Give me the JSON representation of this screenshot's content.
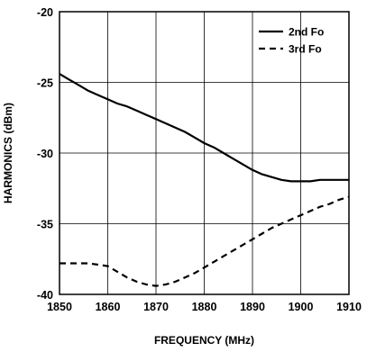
{
  "chart_data": {
    "type": "line",
    "xlabel": "FREQUENCY (MHz)",
    "ylabel": "HARMONICS (dBm)",
    "xlim": [
      1850,
      1910
    ],
    "ylim": [
      -40,
      -20
    ],
    "x_ticks": [
      "1850",
      "1860",
      "1870",
      "1880",
      "1890",
      "1900",
      "1910"
    ],
    "y_ticks": [
      "-20",
      "-25",
      "-30",
      "-35",
      "-40"
    ],
    "x_tick_values": [
      1850,
      1860,
      1870,
      1880,
      1890,
      1900,
      1910
    ],
    "y_tick_values": [
      -20,
      -25,
      -30,
      -35,
      -40
    ],
    "grid": true,
    "legend_position": "top-right",
    "series": [
      {
        "name": "2nd Fo",
        "style": "solid",
        "color": "#000000",
        "x": [
          1850,
          1852,
          1854,
          1856,
          1858,
          1860,
          1862,
          1864,
          1866,
          1868,
          1870,
          1872,
          1874,
          1876,
          1878,
          1880,
          1882,
          1884,
          1886,
          1888,
          1890,
          1892,
          1894,
          1896,
          1898,
          1900,
          1902,
          1904,
          1906,
          1908,
          1910
        ],
        "y": [
          -24.4,
          -24.8,
          -25.2,
          -25.6,
          -25.9,
          -26.2,
          -26.5,
          -26.7,
          -27.0,
          -27.3,
          -27.6,
          -27.9,
          -28.2,
          -28.5,
          -28.9,
          -29.3,
          -29.6,
          -30.0,
          -30.4,
          -30.8,
          -31.2,
          -31.5,
          -31.7,
          -31.9,
          -32.0,
          -32.0,
          -32.0,
          -31.9,
          -31.9,
          -31.9,
          -31.9
        ]
      },
      {
        "name": "3rd Fo",
        "style": "dashed",
        "color": "#000000",
        "x": [
          1850,
          1852,
          1854,
          1856,
          1858,
          1860,
          1862,
          1864,
          1866,
          1868,
          1870,
          1872,
          1874,
          1876,
          1878,
          1880,
          1882,
          1884,
          1886,
          1888,
          1890,
          1892,
          1894,
          1896,
          1898,
          1900,
          1902,
          1904,
          1906,
          1908,
          1910
        ],
        "y": [
          -37.8,
          -37.8,
          -37.8,
          -37.8,
          -37.9,
          -38.0,
          -38.4,
          -38.8,
          -39.1,
          -39.3,
          -39.4,
          -39.3,
          -39.1,
          -38.8,
          -38.5,
          -38.1,
          -37.7,
          -37.3,
          -36.9,
          -36.5,
          -36.1,
          -35.7,
          -35.3,
          -35.0,
          -34.7,
          -34.4,
          -34.1,
          -33.8,
          -33.6,
          -33.3,
          -33.1
        ]
      }
    ]
  }
}
